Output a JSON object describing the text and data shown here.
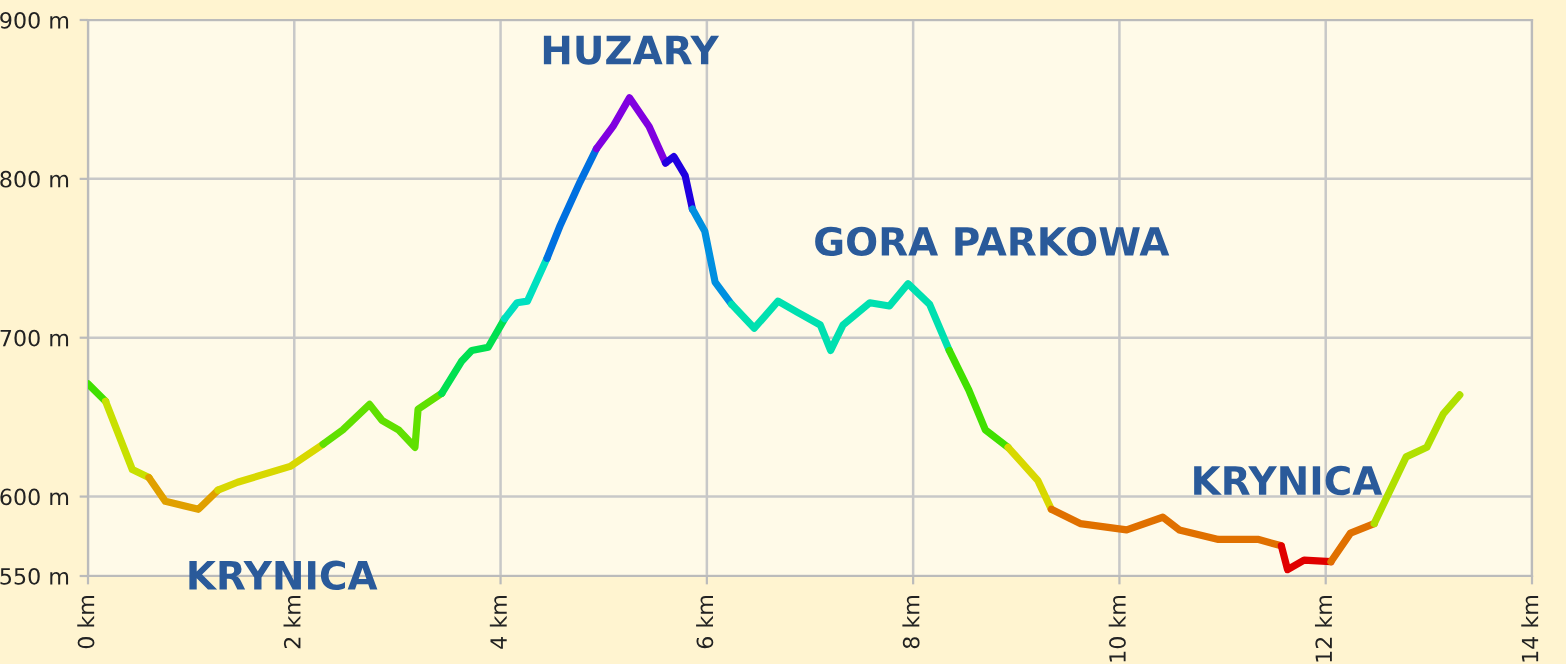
{
  "chart_data": {
    "type": "line",
    "series": [
      {
        "color": "#40e000",
        "x": [
          0,
          0.17
        ],
        "values": [
          671,
          660
        ]
      },
      {
        "color": "#c8e000",
        "x": [
          0.17,
          0.43,
          0.59
        ],
        "values": [
          660,
          617,
          612
        ]
      },
      {
        "color": "#e0a000",
        "x": [
          0.59,
          0.75,
          1.07,
          1.26
        ],
        "values": [
          612,
          597,
          592,
          604
        ]
      },
      {
        "color": "#d8d800",
        "x": [
          1.26,
          1.45,
          1.96,
          2.28
        ],
        "values": [
          604,
          609,
          619,
          633
        ]
      },
      {
        "color": "#60e000",
        "x": [
          2.28,
          2.47,
          2.73,
          2.85,
          3.01,
          3.17,
          3.2,
          3.43
        ],
        "values": [
          633,
          642,
          658,
          648,
          642,
          631,
          655,
          665
        ]
      },
      {
        "color": "#00e050",
        "x": [
          3.43,
          3.62,
          3.72,
          3.88,
          4.04
        ],
        "values": [
          665,
          685,
          692,
          694,
          712
        ]
      },
      {
        "color": "#00e0c0",
        "x": [
          4.04,
          4.16,
          4.26,
          4.45
        ],
        "values": [
          712,
          722,
          723,
          750
        ]
      },
      {
        "color": "#0070e0",
        "x": [
          4.45,
          4.58,
          4.77,
          4.93
        ],
        "values": [
          750,
          771,
          798,
          819
        ]
      },
      {
        "color": "#8000e0",
        "x": [
          4.93,
          5.09,
          5.25,
          5.44,
          5.6
        ],
        "values": [
          819,
          833,
          851,
          833,
          810
        ]
      },
      {
        "color": "#2000e0",
        "x": [
          5.6,
          5.68,
          5.79,
          5.86
        ],
        "values": [
          810,
          814,
          802,
          781
        ]
      },
      {
        "color": "#0090e0",
        "x": [
          5.86,
          5.98,
          6.08,
          6.24
        ],
        "values": [
          781,
          767,
          735,
          721
        ]
      },
      {
        "color": "#00e0b0",
        "x": [
          6.24,
          6.46,
          6.69,
          6.88,
          7.1,
          7.2,
          7.32,
          7.58,
          7.77,
          7.95,
          8.16,
          8.35
        ],
        "values": [
          721,
          706,
          723,
          716,
          708,
          692,
          708,
          722,
          720,
          734,
          721,
          692
        ]
      },
      {
        "color": "#40e000",
        "x": [
          8.35,
          8.54,
          8.7,
          8.92
        ],
        "values": [
          692,
          667,
          642,
          631
        ]
      },
      {
        "color": "#d8d800",
        "x": [
          8.92,
          9.21,
          9.34
        ],
        "values": [
          631,
          610,
          592
        ]
      },
      {
        "color": "#e07000",
        "x": [
          9.34,
          9.62,
          10.07,
          10.42,
          10.58,
          10.96,
          11.35,
          11.57
        ],
        "values": [
          592,
          583,
          579,
          587,
          579,
          573,
          573,
          569
        ]
      },
      {
        "color": "#e00000",
        "x": [
          11.57,
          11.63,
          11.79,
          12.05
        ],
        "values": [
          569,
          554,
          560,
          559
        ]
      },
      {
        "color": "#e07000",
        "x": [
          12.05,
          12.24,
          12.47
        ],
        "values": [
          559,
          577,
          583
        ]
      },
      {
        "color": "#b0e000",
        "x": [
          12.47,
          12.78,
          12.98,
          13.14,
          13.3
        ],
        "values": [
          583,
          625,
          631,
          652,
          664
        ]
      }
    ],
    "xlim": [
      0,
      14
    ],
    "xticks": [
      {
        "value": 0,
        "label": "0 km"
      },
      {
        "value": 2,
        "label": "2 km"
      },
      {
        "value": 4,
        "label": "4 km"
      },
      {
        "value": 6,
        "label": "6 km"
      },
      {
        "value": 8,
        "label": "8 km"
      },
      {
        "value": 10,
        "label": "10 km"
      },
      {
        "value": 12,
        "label": "12 km"
      },
      {
        "value": 14,
        "label": "14 km"
      }
    ],
    "ylim": [
      550,
      900
    ],
    "yticks": [
      {
        "value": 550,
        "label": "550 m"
      },
      {
        "value": 600,
        "label": "600 m"
      },
      {
        "value": 700,
        "label": "700 m"
      },
      {
        "value": 800,
        "label": "800 m"
      },
      {
        "value": 900,
        "label": "900 m"
      }
    ],
    "grid": true,
    "annotations": [
      {
        "text": "KRYNICA",
        "x": 1.07,
        "y": 592
      },
      {
        "text": "HUZARY",
        "x": 5.25,
        "y": 851
      },
      {
        "text": "GORA PARKOWA",
        "x": 7.95,
        "y": 734
      },
      {
        "text": "KRYNICA",
        "x": 11.35,
        "y": 573
      }
    ]
  }
}
